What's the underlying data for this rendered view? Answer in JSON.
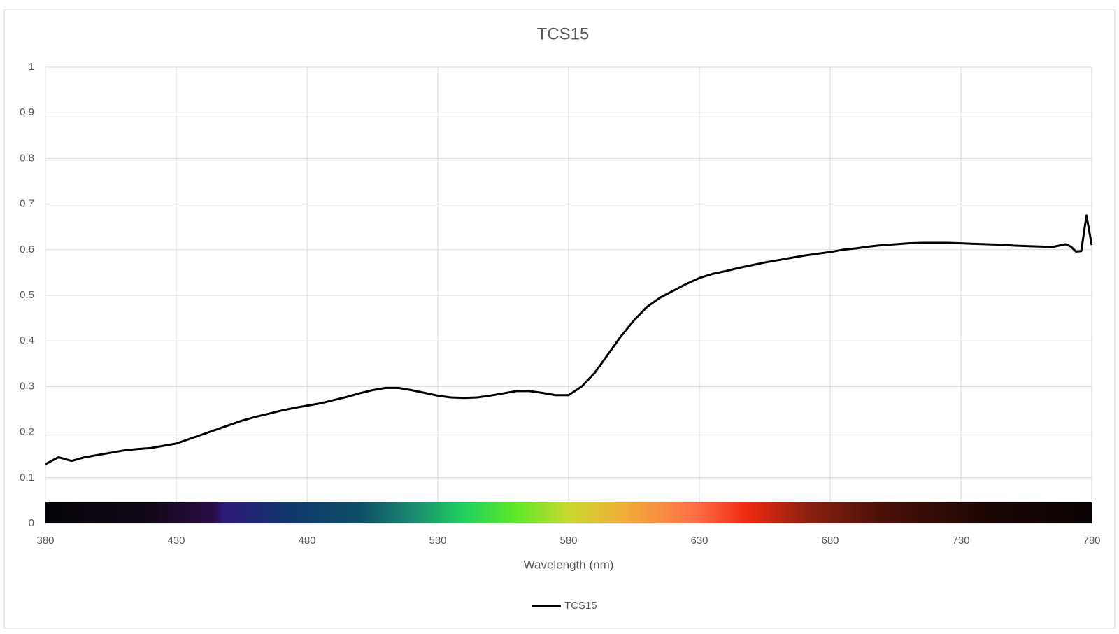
{
  "chart_data": {
    "type": "line",
    "title": "TCS15",
    "x_label": "Wavelength (nm)",
    "x": [
      380,
      385,
      390,
      395,
      400,
      405,
      410,
      415,
      420,
      425,
      430,
      435,
      440,
      445,
      450,
      455,
      460,
      465,
      470,
      475,
      480,
      485,
      490,
      495,
      500,
      505,
      510,
      515,
      520,
      525,
      530,
      535,
      540,
      545,
      550,
      555,
      560,
      565,
      570,
      575,
      580,
      585,
      590,
      595,
      600,
      605,
      610,
      615,
      620,
      625,
      630,
      635,
      640,
      645,
      650,
      655,
      660,
      665,
      670,
      675,
      680,
      685,
      690,
      695,
      700,
      705,
      710,
      715,
      720,
      725,
      730,
      735,
      740,
      745,
      750,
      755,
      760,
      765,
      770,
      772,
      774,
      776,
      778,
      780
    ],
    "series": [
      {
        "name": "TCS15",
        "color": "#000000",
        "values": [
          0.13,
          0.145,
          0.137,
          0.145,
          0.15,
          0.155,
          0.16,
          0.163,
          0.165,
          0.17,
          0.175,
          0.185,
          0.195,
          0.205,
          0.215,
          0.225,
          0.233,
          0.24,
          0.247,
          0.253,
          0.258,
          0.263,
          0.27,
          0.277,
          0.285,
          0.292,
          0.297,
          0.297,
          0.292,
          0.286,
          0.28,
          0.276,
          0.275,
          0.276,
          0.28,
          0.285,
          0.29,
          0.29,
          0.286,
          0.281,
          0.281,
          0.3,
          0.33,
          0.37,
          0.41,
          0.445,
          0.475,
          0.495,
          0.51,
          0.525,
          0.538,
          0.547,
          0.553,
          0.56,
          0.566,
          0.572,
          0.577,
          0.582,
          0.587,
          0.591,
          0.595,
          0.6,
          0.603,
          0.607,
          0.61,
          0.612,
          0.614,
          0.615,
          0.615,
          0.615,
          0.614,
          0.613,
          0.612,
          0.611,
          0.609,
          0.608,
          0.607,
          0.606,
          0.612,
          0.607,
          0.596,
          0.597,
          0.675,
          0.61
        ]
      }
    ],
    "xlim": [
      380,
      780
    ],
    "xticks": [
      380,
      430,
      480,
      530,
      580,
      630,
      680,
      730,
      780
    ],
    "ylim": [
      0,
      1
    ],
    "yticks": [
      0,
      0.1,
      0.2,
      0.3,
      0.4,
      0.5,
      0.6,
      0.7,
      0.8,
      0.9,
      1
    ],
    "grid": true,
    "legend": "bottom"
  }
}
